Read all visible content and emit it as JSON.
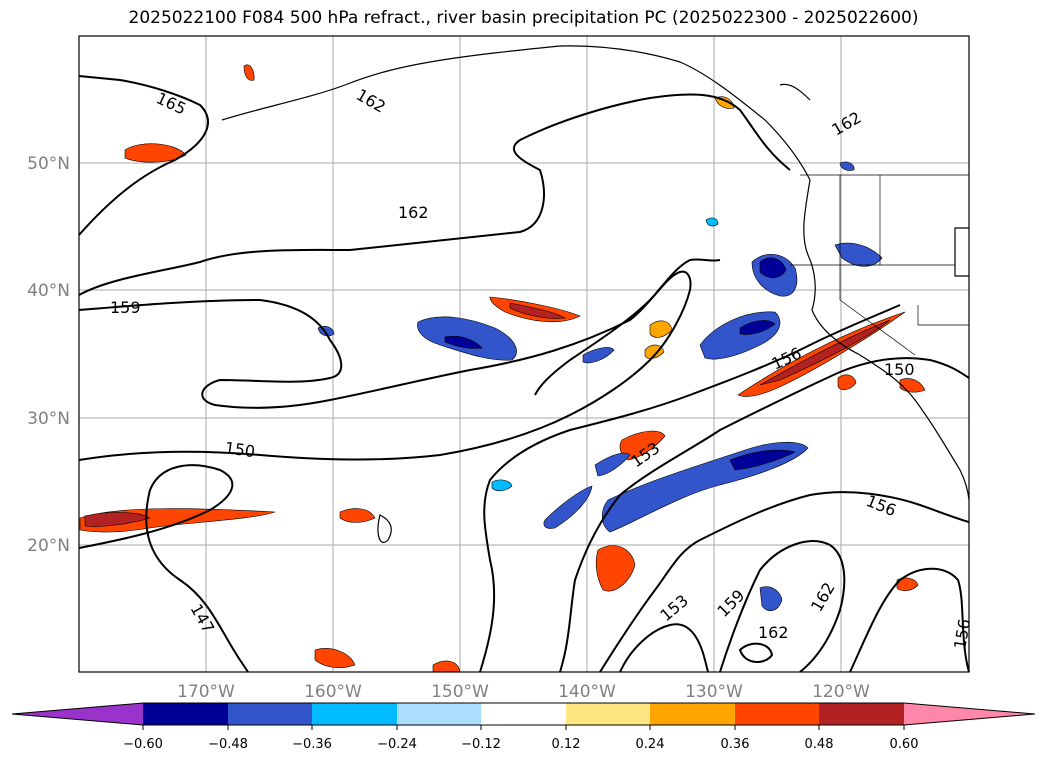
{
  "title": "2025022100 F084 500 hPa refract., river basin precipitation PC (2025022300 - 2025022600)",
  "map": {
    "lat_labels": [
      "50°N",
      "40°N",
      "30°N",
      "20°N"
    ],
    "lon_labels": [
      "170°W",
      "160°W",
      "150°W",
      "140°W",
      "130°W",
      "120°W"
    ],
    "contour_labels": [
      "165",
      "162",
      "162",
      "162",
      "159",
      "156",
      "150",
      "150",
      "153",
      "156",
      "147",
      "153",
      "159",
      "162",
      "162",
      "156"
    ]
  },
  "colorbar": {
    "ticks": [
      "−0.60",
      "−0.48",
      "−0.36",
      "−0.24",
      "−0.12",
      "0.12",
      "0.24",
      "0.36",
      "0.48",
      "0.60"
    ],
    "colors": [
      "#9933cc",
      "#000099",
      "#3355cc",
      "#00bbff",
      "#aaddff",
      "#ffffff",
      "#ffe680",
      "#ffa500",
      "#ff4500",
      "#b22222",
      "#ff88aa"
    ]
  }
}
